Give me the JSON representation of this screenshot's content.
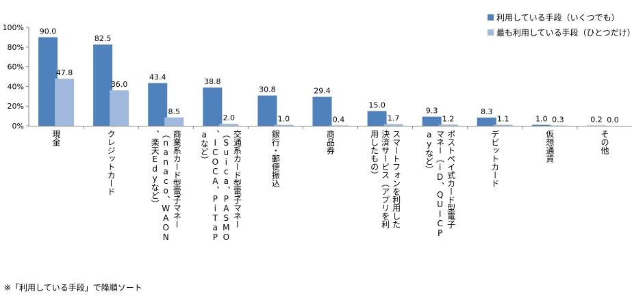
{
  "legend": {
    "all": "利用している手段（いくつでも）",
    "most": "最も利用している手段（ひとつだけ）"
  },
  "note": "※「利用している手段」で降順ソート",
  "colors": {
    "all": "#4f81bd",
    "most": "#a0b9dc"
  },
  "chart_data": {
    "type": "bar",
    "categories": [
      "現金",
      "クレジットカード",
      "商業系カード型電子マネー（nanaco、WAON、楽天Edyなど）",
      "交通系カード型電子マネー（Suica、PASMO、ICOCA、PiTaPaなど）",
      "銀行・郵便振込",
      "商品券",
      "スマートフォンを利用した決済サービス（アプリを利用したもの）",
      "ポストペイ式カード型電子マネー（iD、QUICPayなど）",
      "デビットカード",
      "仮想通貨",
      "その他"
    ],
    "series": [
      {
        "name": "利用している手段（いくつでも）",
        "values": [
          90.0,
          82.5,
          43.4,
          38.8,
          30.8,
          29.4,
          15.0,
          9.3,
          8.3,
          1.0,
          0.2
        ]
      },
      {
        "name": "最も利用している手段（ひとつだけ）",
        "values": [
          47.8,
          36.0,
          8.5,
          2.0,
          1.0,
          0.4,
          1.7,
          1.2,
          1.1,
          0.3,
          0.0
        ]
      }
    ],
    "yticks": [
      "0%",
      "20%",
      "40%",
      "60%",
      "80%",
      "100%"
    ],
    "ylim": [
      0,
      100
    ],
    "legend_position": "top-right"
  }
}
